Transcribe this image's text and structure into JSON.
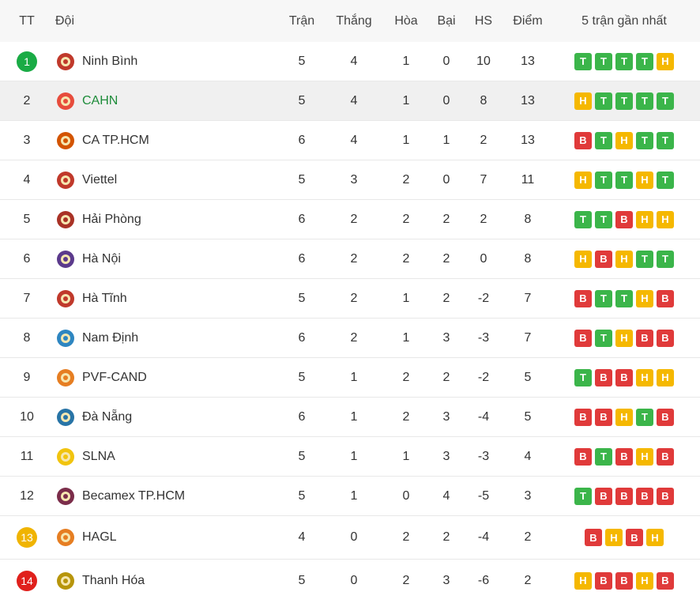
{
  "header": {
    "rank": "TT",
    "team": "Đội",
    "played": "Trận",
    "won": "Thắng",
    "drawn": "Hòa",
    "lost": "Bại",
    "gd": "HS",
    "points": "Điểm",
    "form": "5 trận gần nhất"
  },
  "colors": {
    "win": "#3bb54a",
    "draw": "#f5b800",
    "loss": "#e03a3a",
    "rank_first": "#1aab45",
    "rank_relegation_playoff": "#f0b400",
    "rank_relegation": "#e0201c",
    "highlight_team": "#1e8c3a"
  },
  "rows": [
    {
      "rank": "1",
      "team": "Ninh Bình",
      "played": "5",
      "won": "4",
      "drawn": "1",
      "lost": "0",
      "gd": "10",
      "points": "13",
      "form": [
        "T",
        "T",
        "T",
        "T",
        "H"
      ],
      "logo": "ninh-binh-logo"
    },
    {
      "rank": "2",
      "team": "CAHN",
      "played": "5",
      "won": "4",
      "drawn": "1",
      "lost": "0",
      "gd": "8",
      "points": "13",
      "form": [
        "H",
        "T",
        "T",
        "T",
        "T"
      ],
      "logo": "cahn-logo"
    },
    {
      "rank": "3",
      "team": "CA TP.HCM",
      "played": "6",
      "won": "4",
      "drawn": "1",
      "lost": "1",
      "gd": "2",
      "points": "13",
      "form": [
        "B",
        "T",
        "H",
        "T",
        "T"
      ],
      "logo": "ca-tphcm-logo"
    },
    {
      "rank": "4",
      "team": "Viettel",
      "played": "5",
      "won": "3",
      "drawn": "2",
      "lost": "0",
      "gd": "7",
      "points": "11",
      "form": [
        "H",
        "T",
        "T",
        "H",
        "T"
      ],
      "logo": "viettel-logo"
    },
    {
      "rank": "5",
      "team": "Hải Phòng",
      "played": "6",
      "won": "2",
      "drawn": "2",
      "lost": "2",
      "gd": "2",
      "points": "8",
      "form": [
        "T",
        "T",
        "B",
        "H",
        "H"
      ],
      "logo": "hai-phong-logo"
    },
    {
      "rank": "6",
      "team": "Hà Nội",
      "played": "6",
      "won": "2",
      "drawn": "2",
      "lost": "2",
      "gd": "0",
      "points": "8",
      "form": [
        "H",
        "B",
        "H",
        "T",
        "T"
      ],
      "logo": "ha-noi-logo"
    },
    {
      "rank": "7",
      "team": "Hà Tĩnh",
      "played": "5",
      "won": "2",
      "drawn": "1",
      "lost": "2",
      "gd": "-2",
      "points": "7",
      "form": [
        "B",
        "T",
        "T",
        "H",
        "B"
      ],
      "logo": "ha-tinh-logo"
    },
    {
      "rank": "8",
      "team": "Nam Định",
      "played": "6",
      "won": "2",
      "drawn": "1",
      "lost": "3",
      "gd": "-3",
      "points": "7",
      "form": [
        "B",
        "T",
        "H",
        "B",
        "B"
      ],
      "logo": "nam-dinh-logo"
    },
    {
      "rank": "9",
      "team": "PVF-CAND",
      "played": "5",
      "won": "1",
      "drawn": "2",
      "lost": "2",
      "gd": "-2",
      "points": "5",
      "form": [
        "T",
        "B",
        "B",
        "H",
        "H"
      ],
      "logo": "pvf-cand-logo"
    },
    {
      "rank": "10",
      "team": "Đà Nẵng",
      "played": "6",
      "won": "1",
      "drawn": "2",
      "lost": "3",
      "gd": "-4",
      "points": "5",
      "form": [
        "B",
        "B",
        "H",
        "T",
        "B"
      ],
      "logo": "da-nang-logo"
    },
    {
      "rank": "11",
      "team": "SLNA",
      "played": "5",
      "won": "1",
      "drawn": "1",
      "lost": "3",
      "gd": "-3",
      "points": "4",
      "form": [
        "B",
        "T",
        "B",
        "H",
        "B"
      ],
      "logo": "slna-logo"
    },
    {
      "rank": "12",
      "team": "Becamex TP.HCM",
      "played": "5",
      "won": "1",
      "drawn": "0",
      "lost": "4",
      "gd": "-5",
      "points": "3",
      "form": [
        "T",
        "B",
        "B",
        "B",
        "B"
      ],
      "logo": "becamex-logo"
    },
    {
      "rank": "13",
      "team": "HAGL",
      "played": "4",
      "won": "0",
      "drawn": "2",
      "lost": "2",
      "gd": "-4",
      "points": "2",
      "form": [
        "B",
        "H",
        "B",
        "H"
      ],
      "logo": "hagl-logo"
    },
    {
      "rank": "14",
      "team": "Thanh Hóa",
      "played": "5",
      "won": "0",
      "drawn": "2",
      "lost": "3",
      "gd": "-6",
      "points": "2",
      "form": [
        "H",
        "B",
        "B",
        "H",
        "B"
      ],
      "logo": "thanh-hoa-logo"
    }
  ]
}
